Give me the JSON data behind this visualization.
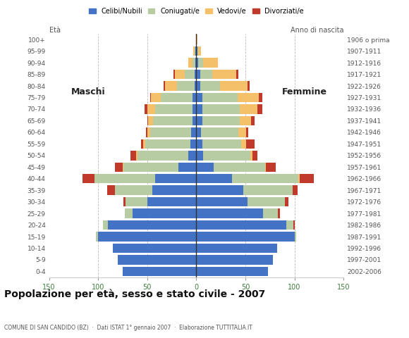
{
  "age_groups_bottom_to_top": [
    "0-4",
    "5-9",
    "10-14",
    "15-19",
    "20-24",
    "25-29",
    "30-34",
    "35-39",
    "40-44",
    "45-49",
    "50-54",
    "55-59",
    "60-64",
    "65-69",
    "70-74",
    "75-79",
    "80-84",
    "85-89",
    "90-94",
    "95-99",
    "100+"
  ],
  "birth_years_bottom_to_top": [
    "2002-2006",
    "1997-2001",
    "1992-1996",
    "1987-1991",
    "1982-1986",
    "1977-1981",
    "1972-1976",
    "1967-1971",
    "1962-1966",
    "1957-1961",
    "1952-1956",
    "1947-1951",
    "1942-1946",
    "1937-1941",
    "1932-1936",
    "1927-1931",
    "1922-1926",
    "1917-1921",
    "1912-1916",
    "1907-1911",
    "1906 o prima"
  ],
  "males": {
    "celibe": [
      75,
      80,
      85,
      100,
      90,
      65,
      50,
      45,
      42,
      18,
      8,
      6,
      5,
      4,
      4,
      4,
      2,
      2,
      1,
      1,
      0
    ],
    "coniugato": [
      0,
      0,
      0,
      2,
      5,
      8,
      22,
      38,
      62,
      56,
      52,
      46,
      42,
      40,
      38,
      32,
      18,
      10,
      3,
      1,
      0
    ],
    "vedovo": [
      0,
      0,
      0,
      0,
      0,
      0,
      0,
      0,
      0,
      1,
      1,
      2,
      3,
      5,
      8,
      10,
      12,
      10,
      4,
      1,
      0
    ],
    "divorziato": [
      0,
      0,
      0,
      0,
      0,
      0,
      2,
      8,
      12,
      8,
      6,
      2,
      1,
      1,
      3,
      1,
      1,
      1,
      0,
      0,
      0
    ]
  },
  "females": {
    "nubile": [
      73,
      78,
      82,
      100,
      92,
      68,
      52,
      48,
      36,
      18,
      7,
      6,
      5,
      6,
      6,
      6,
      4,
      4,
      2,
      1,
      0
    ],
    "coniugata": [
      0,
      0,
      0,
      2,
      7,
      15,
      38,
      50,
      68,
      52,
      48,
      40,
      38,
      38,
      38,
      36,
      20,
      12,
      5,
      1,
      0
    ],
    "vedova": [
      0,
      0,
      0,
      0,
      0,
      0,
      0,
      0,
      1,
      1,
      2,
      5,
      8,
      12,
      18,
      22,
      28,
      25,
      15,
      3,
      1
    ],
    "divorziata": [
      0,
      0,
      0,
      0,
      1,
      2,
      4,
      5,
      15,
      10,
      5,
      8,
      2,
      3,
      5,
      3,
      2,
      2,
      0,
      0,
      0
    ]
  },
  "colors": {
    "celibe": "#4472c4",
    "coniugato": "#b8cca4",
    "vedovo": "#f4c06a",
    "divorziato": "#c0392b"
  },
  "title": "Popolazione per età, sesso e stato civile - 2007",
  "subtitle": "COMUNE DI SAN CANDIDO (BZ)  ·  Dati ISTAT 1° gennaio 2007  ·  Elaborazione TUTTITALIA.IT",
  "xlim": 150,
  "legend_labels": [
    "Celibi/Nubili",
    "Coniugati/e",
    "Vedovi/e",
    "Divorziati/e"
  ],
  "background_color": "#ffffff",
  "grid_color": "#aaaaaa",
  "eta_label": "Età",
  "anno_label": "Anno di nascita",
  "maschi_label": "Maschi",
  "femmine_label": "Femmine"
}
